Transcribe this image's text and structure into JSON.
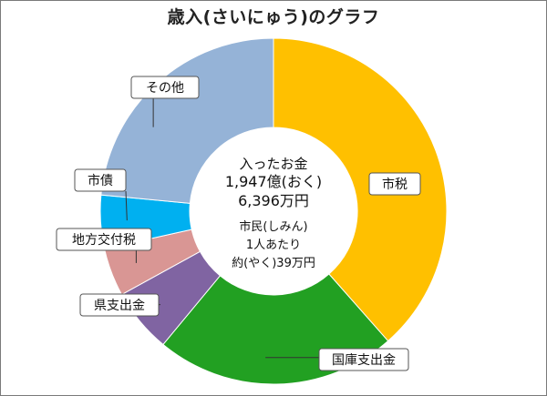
{
  "chart_data": {
    "type": "pie",
    "title": "歳入(さいにゅう)のグラフ",
    "categories": [
      "市税",
      "国庫支出金",
      "県支出金",
      "地方交付税",
      "市債",
      "その他"
    ],
    "values": [
      38.5,
      22.5,
      6.0,
      4.5,
      5.0,
      23.5
    ],
    "colors": [
      "#FFC000",
      "#22A022",
      "#8064A2",
      "#D99694",
      "#00B0F0",
      "#95B3D7"
    ],
    "center_text": {
      "line1": "入ったお金",
      "line2": "1,947億(おく)",
      "line3": "6,396万円",
      "line4": "市民(しみん)",
      "line5": "1人あたり",
      "line6": "約(やく)39万円"
    }
  }
}
